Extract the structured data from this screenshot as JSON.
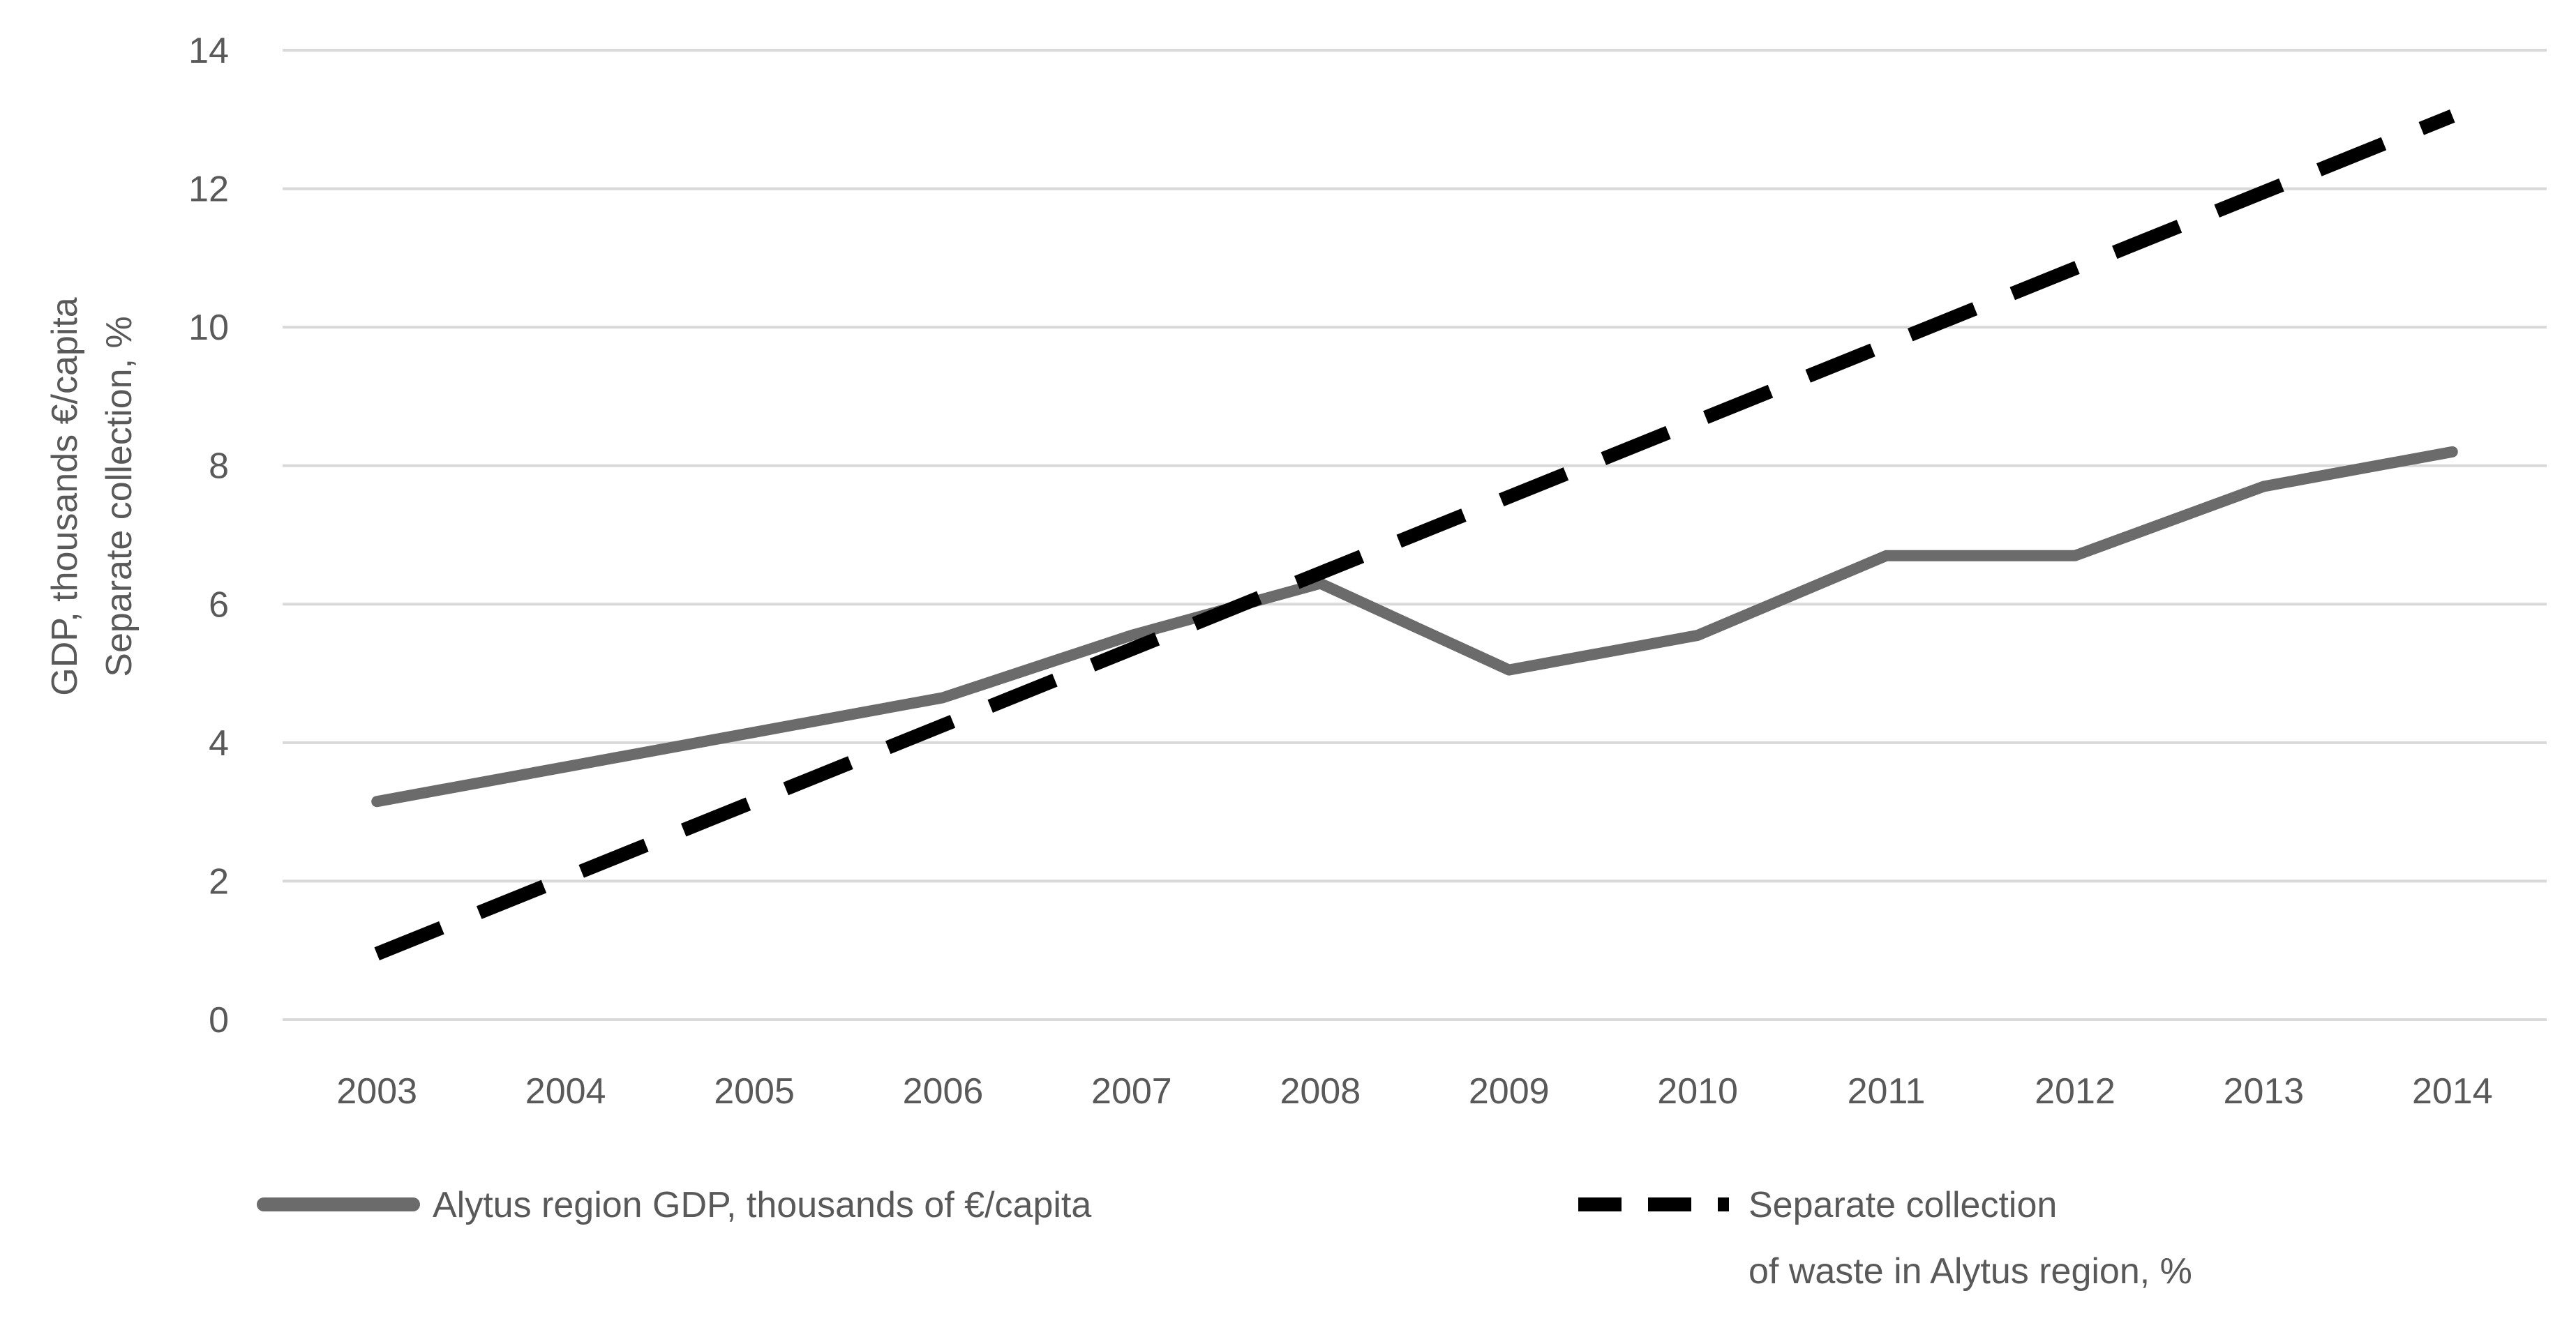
{
  "chart_data": {
    "type": "line",
    "title": "",
    "xlabel": "",
    "ylabel_lines": [
      "GDP, thousands €/capita",
      "Separate collection, %"
    ],
    "ylim": [
      0,
      14
    ],
    "yticks": [
      0,
      2,
      4,
      6,
      8,
      10,
      12,
      14
    ],
    "grid": true,
    "legend_position": "bottom",
    "categories": [
      "2003",
      "2004",
      "2005",
      "2006",
      "2007",
      "2008",
      "2009",
      "2010",
      "2011",
      "2012",
      "2013",
      "2014"
    ],
    "series": [
      {
        "name": "Alytus  region GDP, thousands of €/capita",
        "style": "solid",
        "color": "#6b6b6b",
        "values": [
          3.15,
          3.65,
          4.15,
          4.65,
          5.55,
          6.3,
          5.05,
          5.55,
          6.7,
          6.7,
          7.7,
          8.2
        ]
      },
      {
        "name_lines": [
          "Separate collection",
          "of waste in Alytus region, %"
        ],
        "style": "dashed",
        "color": "#000000",
        "values": [
          0.95,
          2.05,
          3.15,
          4.25,
          5.35,
          6.45,
          7.55,
          8.65,
          9.75,
          10.85,
          11.95,
          13.05
        ]
      }
    ]
  }
}
